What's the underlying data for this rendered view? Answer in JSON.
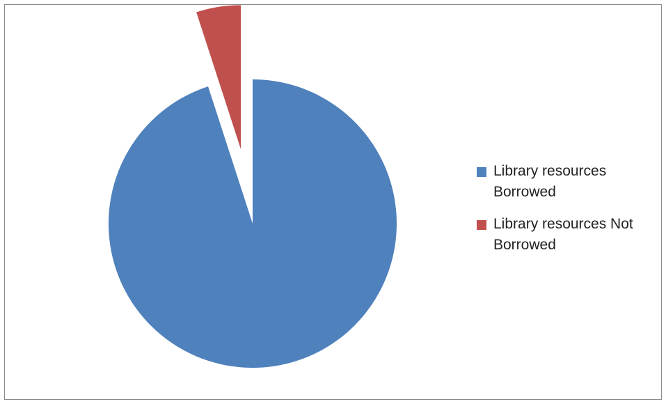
{
  "chart_data": {
    "type": "pie",
    "title": "",
    "slices": [
      {
        "label": "Library resources Borrowed",
        "value": 95,
        "color": "#4F81BD"
      },
      {
        "label": "Library resources Not Borrowed",
        "value": 5,
        "color": "#C0504D"
      }
    ],
    "exploded": "Library resources Not Borrowed",
    "start_angle_deg": 0,
    "direction": "clockwise",
    "legend_position": "right"
  }
}
